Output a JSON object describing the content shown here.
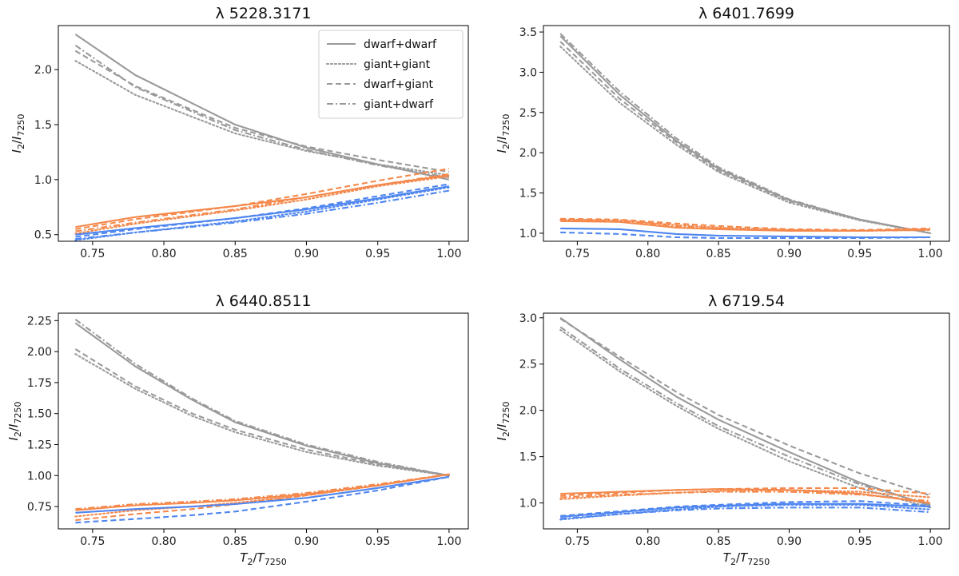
{
  "figure": {
    "y_label_main": "I",
    "y_label_main_sub": "2",
    "y_label_den": "I",
    "y_label_den_sub": "7250",
    "x_label_main": "T",
    "x_label_main_sub": "2",
    "x_label_den": "T",
    "x_label_den_sub": "7250"
  },
  "chart_data": [
    {
      "type": "line",
      "title": "λ 5228.3171",
      "xlim": [
        0.726,
        1.0135
      ],
      "ylim": [
        0.44,
        2.4
      ],
      "xticks": [
        0.75,
        0.8,
        0.85,
        0.9,
        0.95,
        1.0
      ],
      "yticks": [
        0.5,
        1.0,
        1.5,
        2.0
      ],
      "ytick_labels": [
        "0.5",
        "1.0",
        "1.5",
        "2.0"
      ],
      "legend": {
        "placement": "top-right",
        "entries": [
          {
            "label": "dwarf+dwarf",
            "style": "solid"
          },
          {
            "label": "giant+giant",
            "style": "dotted"
          },
          {
            "label": "dwarf+giant",
            "style": "dashed"
          },
          {
            "label": "giant+dwarf",
            "style": "dashdot"
          }
        ]
      },
      "x": [
        0.738,
        0.78,
        0.85,
        0.9,
        0.95,
        1.0
      ],
      "series": [
        {
          "group": "gray",
          "style": "solid",
          "values": [
            2.32,
            1.95,
            1.5,
            1.29,
            1.14,
            1.0
          ]
        },
        {
          "group": "gray",
          "style": "dotted",
          "values": [
            2.08,
            1.77,
            1.42,
            1.26,
            1.14,
            1.04
          ]
        },
        {
          "group": "gray",
          "style": "dashed",
          "values": [
            2.17,
            1.85,
            1.47,
            1.3,
            1.18,
            1.07
          ]
        },
        {
          "group": "gray",
          "style": "dashdot",
          "values": [
            2.22,
            1.84,
            1.45,
            1.27,
            1.13,
            1.02
          ]
        },
        {
          "group": "orange",
          "style": "solid",
          "values": [
            0.57,
            0.66,
            0.76,
            0.84,
            0.95,
            1.04
          ]
        },
        {
          "group": "orange",
          "style": "dotted",
          "values": [
            0.51,
            0.6,
            0.72,
            0.82,
            0.94,
            1.03
          ]
        },
        {
          "group": "orange",
          "style": "dashed",
          "values": [
            0.55,
            0.64,
            0.76,
            0.87,
            0.99,
            1.1
          ]
        },
        {
          "group": "orange",
          "style": "dashdot",
          "values": [
            0.53,
            0.61,
            0.73,
            0.84,
            0.95,
            1.05
          ]
        },
        {
          "group": "blue",
          "style": "solid",
          "values": [
            0.5,
            0.56,
            0.65,
            0.73,
            0.83,
            0.94
          ]
        },
        {
          "group": "blue",
          "style": "dotted",
          "values": [
            0.45,
            0.52,
            0.62,
            0.71,
            0.82,
            0.93
          ]
        },
        {
          "group": "blue",
          "style": "dashed",
          "values": [
            0.48,
            0.55,
            0.65,
            0.74,
            0.85,
            0.96
          ]
        },
        {
          "group": "blue",
          "style": "dashdot",
          "values": [
            0.46,
            0.52,
            0.61,
            0.69,
            0.79,
            0.9
          ]
        }
      ]
    },
    {
      "type": "line",
      "title": "λ 6401.7699",
      "xlim": [
        0.726,
        1.0135
      ],
      "ylim": [
        0.9,
        3.58
      ],
      "xticks": [
        0.75,
        0.8,
        0.85,
        0.9,
        0.95,
        1.0
      ],
      "yticks": [
        1.0,
        1.5,
        2.0,
        2.5,
        3.0,
        3.5
      ],
      "ytick_labels": [
        "1.0",
        "1.5",
        "2.0",
        "2.5",
        "3.0",
        "3.5"
      ],
      "x": [
        0.738,
        0.78,
        0.82,
        0.85,
        0.9,
        0.95,
        1.0
      ],
      "series": [
        {
          "group": "gray",
          "style": "solid",
          "values": [
            3.45,
            2.72,
            2.15,
            1.8,
            1.41,
            1.17,
            1.0
          ]
        },
        {
          "group": "gray",
          "style": "dotted",
          "values": [
            3.32,
            2.62,
            2.1,
            1.76,
            1.38,
            1.16,
            1.0
          ]
        },
        {
          "group": "gray",
          "style": "dashed",
          "values": [
            3.38,
            2.67,
            2.13,
            1.78,
            1.4,
            1.17,
            1.0
          ]
        },
        {
          "group": "gray",
          "style": "dashdot",
          "values": [
            3.48,
            2.76,
            2.18,
            1.82,
            1.42,
            1.17,
            1.0
          ]
        },
        {
          "group": "orange",
          "style": "solid",
          "values": [
            1.15,
            1.14,
            1.07,
            1.05,
            1.03,
            1.03,
            1.05
          ]
        },
        {
          "group": "orange",
          "style": "dotted",
          "values": [
            1.17,
            1.16,
            1.1,
            1.07,
            1.04,
            1.03,
            1.04
          ]
        },
        {
          "group": "orange",
          "style": "dashed",
          "values": [
            1.18,
            1.17,
            1.12,
            1.09,
            1.05,
            1.04,
            1.06
          ]
        },
        {
          "group": "orange",
          "style": "dashdot",
          "values": [
            1.16,
            1.16,
            1.09,
            1.06,
            1.04,
            1.03,
            1.04
          ]
        },
        {
          "group": "blue",
          "style": "solid",
          "values": [
            1.06,
            1.05,
            0.99,
            0.97,
            0.96,
            0.95,
            0.95
          ]
        },
        {
          "group": "blue",
          "style": "dashed",
          "values": [
            1.01,
            0.99,
            0.95,
            0.94,
            0.94,
            0.94,
            0.95
          ]
        }
      ]
    },
    {
      "type": "line",
      "title": "λ 6440.8511",
      "xlim": [
        0.726,
        1.0135
      ],
      "ylim": [
        0.57,
        2.31
      ],
      "xticks": [
        0.75,
        0.8,
        0.85,
        0.9,
        0.95,
        1.0
      ],
      "yticks": [
        0.75,
        1.0,
        1.25,
        1.5,
        1.75,
        2.0,
        2.25
      ],
      "ytick_labels": [
        "0.75",
        "1.00",
        "1.25",
        "1.50",
        "1.75",
        "2.00",
        "2.25"
      ],
      "x": [
        0.738,
        0.78,
        0.82,
        0.85,
        0.9,
        0.95,
        1.0
      ],
      "series": [
        {
          "group": "gray",
          "style": "solid",
          "values": [
            2.23,
            1.88,
            1.61,
            1.43,
            1.24,
            1.1,
            1.0
          ]
        },
        {
          "group": "gray",
          "style": "dotted",
          "values": [
            1.98,
            1.7,
            1.48,
            1.35,
            1.19,
            1.08,
            1.0
          ]
        },
        {
          "group": "gray",
          "style": "dashed",
          "values": [
            2.02,
            1.72,
            1.5,
            1.37,
            1.21,
            1.09,
            1.0
          ]
        },
        {
          "group": "gray",
          "style": "dashdot",
          "values": [
            2.26,
            1.9,
            1.62,
            1.44,
            1.25,
            1.11,
            1.0
          ]
        },
        {
          "group": "orange",
          "style": "solid",
          "values": [
            0.72,
            0.76,
            0.78,
            0.8,
            0.85,
            0.92,
            1.01
          ]
        },
        {
          "group": "orange",
          "style": "dotted",
          "values": [
            0.67,
            0.72,
            0.75,
            0.78,
            0.84,
            0.92,
            1.01
          ]
        },
        {
          "group": "orange",
          "style": "dashed",
          "values": [
            0.64,
            0.69,
            0.73,
            0.77,
            0.84,
            0.92,
            1.01
          ]
        },
        {
          "group": "orange",
          "style": "dashdot",
          "values": [
            0.73,
            0.77,
            0.79,
            0.81,
            0.86,
            0.93,
            1.01
          ]
        },
        {
          "group": "blue",
          "style": "solid",
          "values": [
            0.7,
            0.73,
            0.75,
            0.77,
            0.82,
            0.9,
            0.99
          ]
        },
        {
          "group": "blue",
          "style": "dashed",
          "values": [
            0.62,
            0.65,
            0.68,
            0.71,
            0.79,
            0.88,
            0.99
          ]
        }
      ]
    },
    {
      "type": "line",
      "title": "λ 6719.54",
      "xlim": [
        0.726,
        1.0135
      ],
      "ylim": [
        0.72,
        3.05
      ],
      "xticks": [
        0.75,
        0.8,
        0.85,
        0.9,
        0.95,
        1.0
      ],
      "yticks": [
        1.0,
        1.5,
        2.0,
        2.5,
        3.0
      ],
      "ytick_labels": [
        "1.0",
        "1.5",
        "2.0",
        "2.5",
        "3.0"
      ],
      "x": [
        0.738,
        0.78,
        0.82,
        0.85,
        0.9,
        0.95,
        1.0
      ],
      "series": [
        {
          "group": "gray",
          "style": "solid",
          "values": [
            3.0,
            2.55,
            2.15,
            1.9,
            1.55,
            1.22,
            0.97
          ]
        },
        {
          "group": "gray",
          "style": "dotted",
          "values": [
            2.87,
            2.42,
            2.05,
            1.8,
            1.45,
            1.16,
            0.95
          ]
        },
        {
          "group": "gray",
          "style": "dashed",
          "values": [
            2.99,
            2.58,
            2.2,
            1.95,
            1.62,
            1.32,
            1.08
          ]
        },
        {
          "group": "gray",
          "style": "dashdot",
          "values": [
            2.9,
            2.45,
            2.08,
            1.83,
            1.5,
            1.2,
            0.98
          ]
        },
        {
          "group": "orange",
          "style": "solid",
          "values": [
            1.1,
            1.12,
            1.14,
            1.15,
            1.14,
            1.1,
            1.0
          ]
        },
        {
          "group": "orange",
          "style": "dotted",
          "values": [
            1.04,
            1.08,
            1.11,
            1.13,
            1.14,
            1.12,
            1.06
          ]
        },
        {
          "group": "orange",
          "style": "dashed",
          "values": [
            1.08,
            1.11,
            1.14,
            1.15,
            1.16,
            1.16,
            1.1
          ]
        },
        {
          "group": "orange",
          "style": "dashdot",
          "values": [
            1.06,
            1.09,
            1.11,
            1.12,
            1.12,
            1.09,
            1.02
          ]
        },
        {
          "group": "blue",
          "style": "solid",
          "values": [
            0.85,
            0.9,
            0.95,
            0.97,
            0.99,
            0.99,
            0.96
          ]
        },
        {
          "group": "blue",
          "style": "dotted",
          "values": [
            0.82,
            0.88,
            0.93,
            0.96,
            0.98,
            0.98,
            0.93
          ]
        },
        {
          "group": "blue",
          "style": "dashed",
          "values": [
            0.86,
            0.91,
            0.96,
            0.98,
            1.01,
            1.02,
            0.97
          ]
        },
        {
          "group": "blue",
          "style": "dashdot",
          "values": [
            0.83,
            0.88,
            0.92,
            0.94,
            0.95,
            0.95,
            0.9
          ]
        }
      ]
    }
  ],
  "colors": {
    "gray": "#9a9a9a",
    "orange": "#f5894c",
    "blue": "#4f86f0"
  }
}
